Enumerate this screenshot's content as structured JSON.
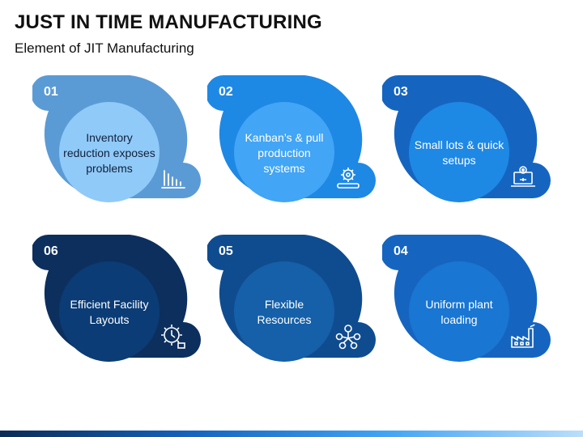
{
  "title": "JUST IN TIME MANUFACTURING",
  "subtitle": "Element of JIT Manufacturing",
  "cards": [
    {
      "num": "01",
      "text": "Inventory reduction exposes problems",
      "icon": "bar-chart-icon",
      "outer": "#5b9bd5",
      "inner": "#90caf9",
      "textDark": true
    },
    {
      "num": "02",
      "text": "Kanban’s & pull production systems",
      "icon": "gear-conveyor-icon",
      "outer": "#1e88e5",
      "inner": "#42a5f5",
      "textDark": false
    },
    {
      "num": "03",
      "text": "Small lots & quick setups",
      "icon": "laptop-gear-icon",
      "outer": "#1565c0",
      "inner": "#1e88e5",
      "textDark": false
    },
    {
      "num": "06",
      "text": "Efficient Facility Layouts",
      "icon": "gear-clock-icon",
      "outer": "#0d2f5e",
      "inner": "#0b3c75",
      "textDark": false
    },
    {
      "num": "05",
      "text": "Flexible Resources",
      "icon": "people-network-icon",
      "outer": "#0f4c8f",
      "inner": "#1560a8",
      "textDark": false
    },
    {
      "num": "04",
      "text": "Uniform plant loading",
      "icon": "factory-icon",
      "outer": "#1565c0",
      "inner": "#1976d2",
      "textDark": false
    }
  ]
}
